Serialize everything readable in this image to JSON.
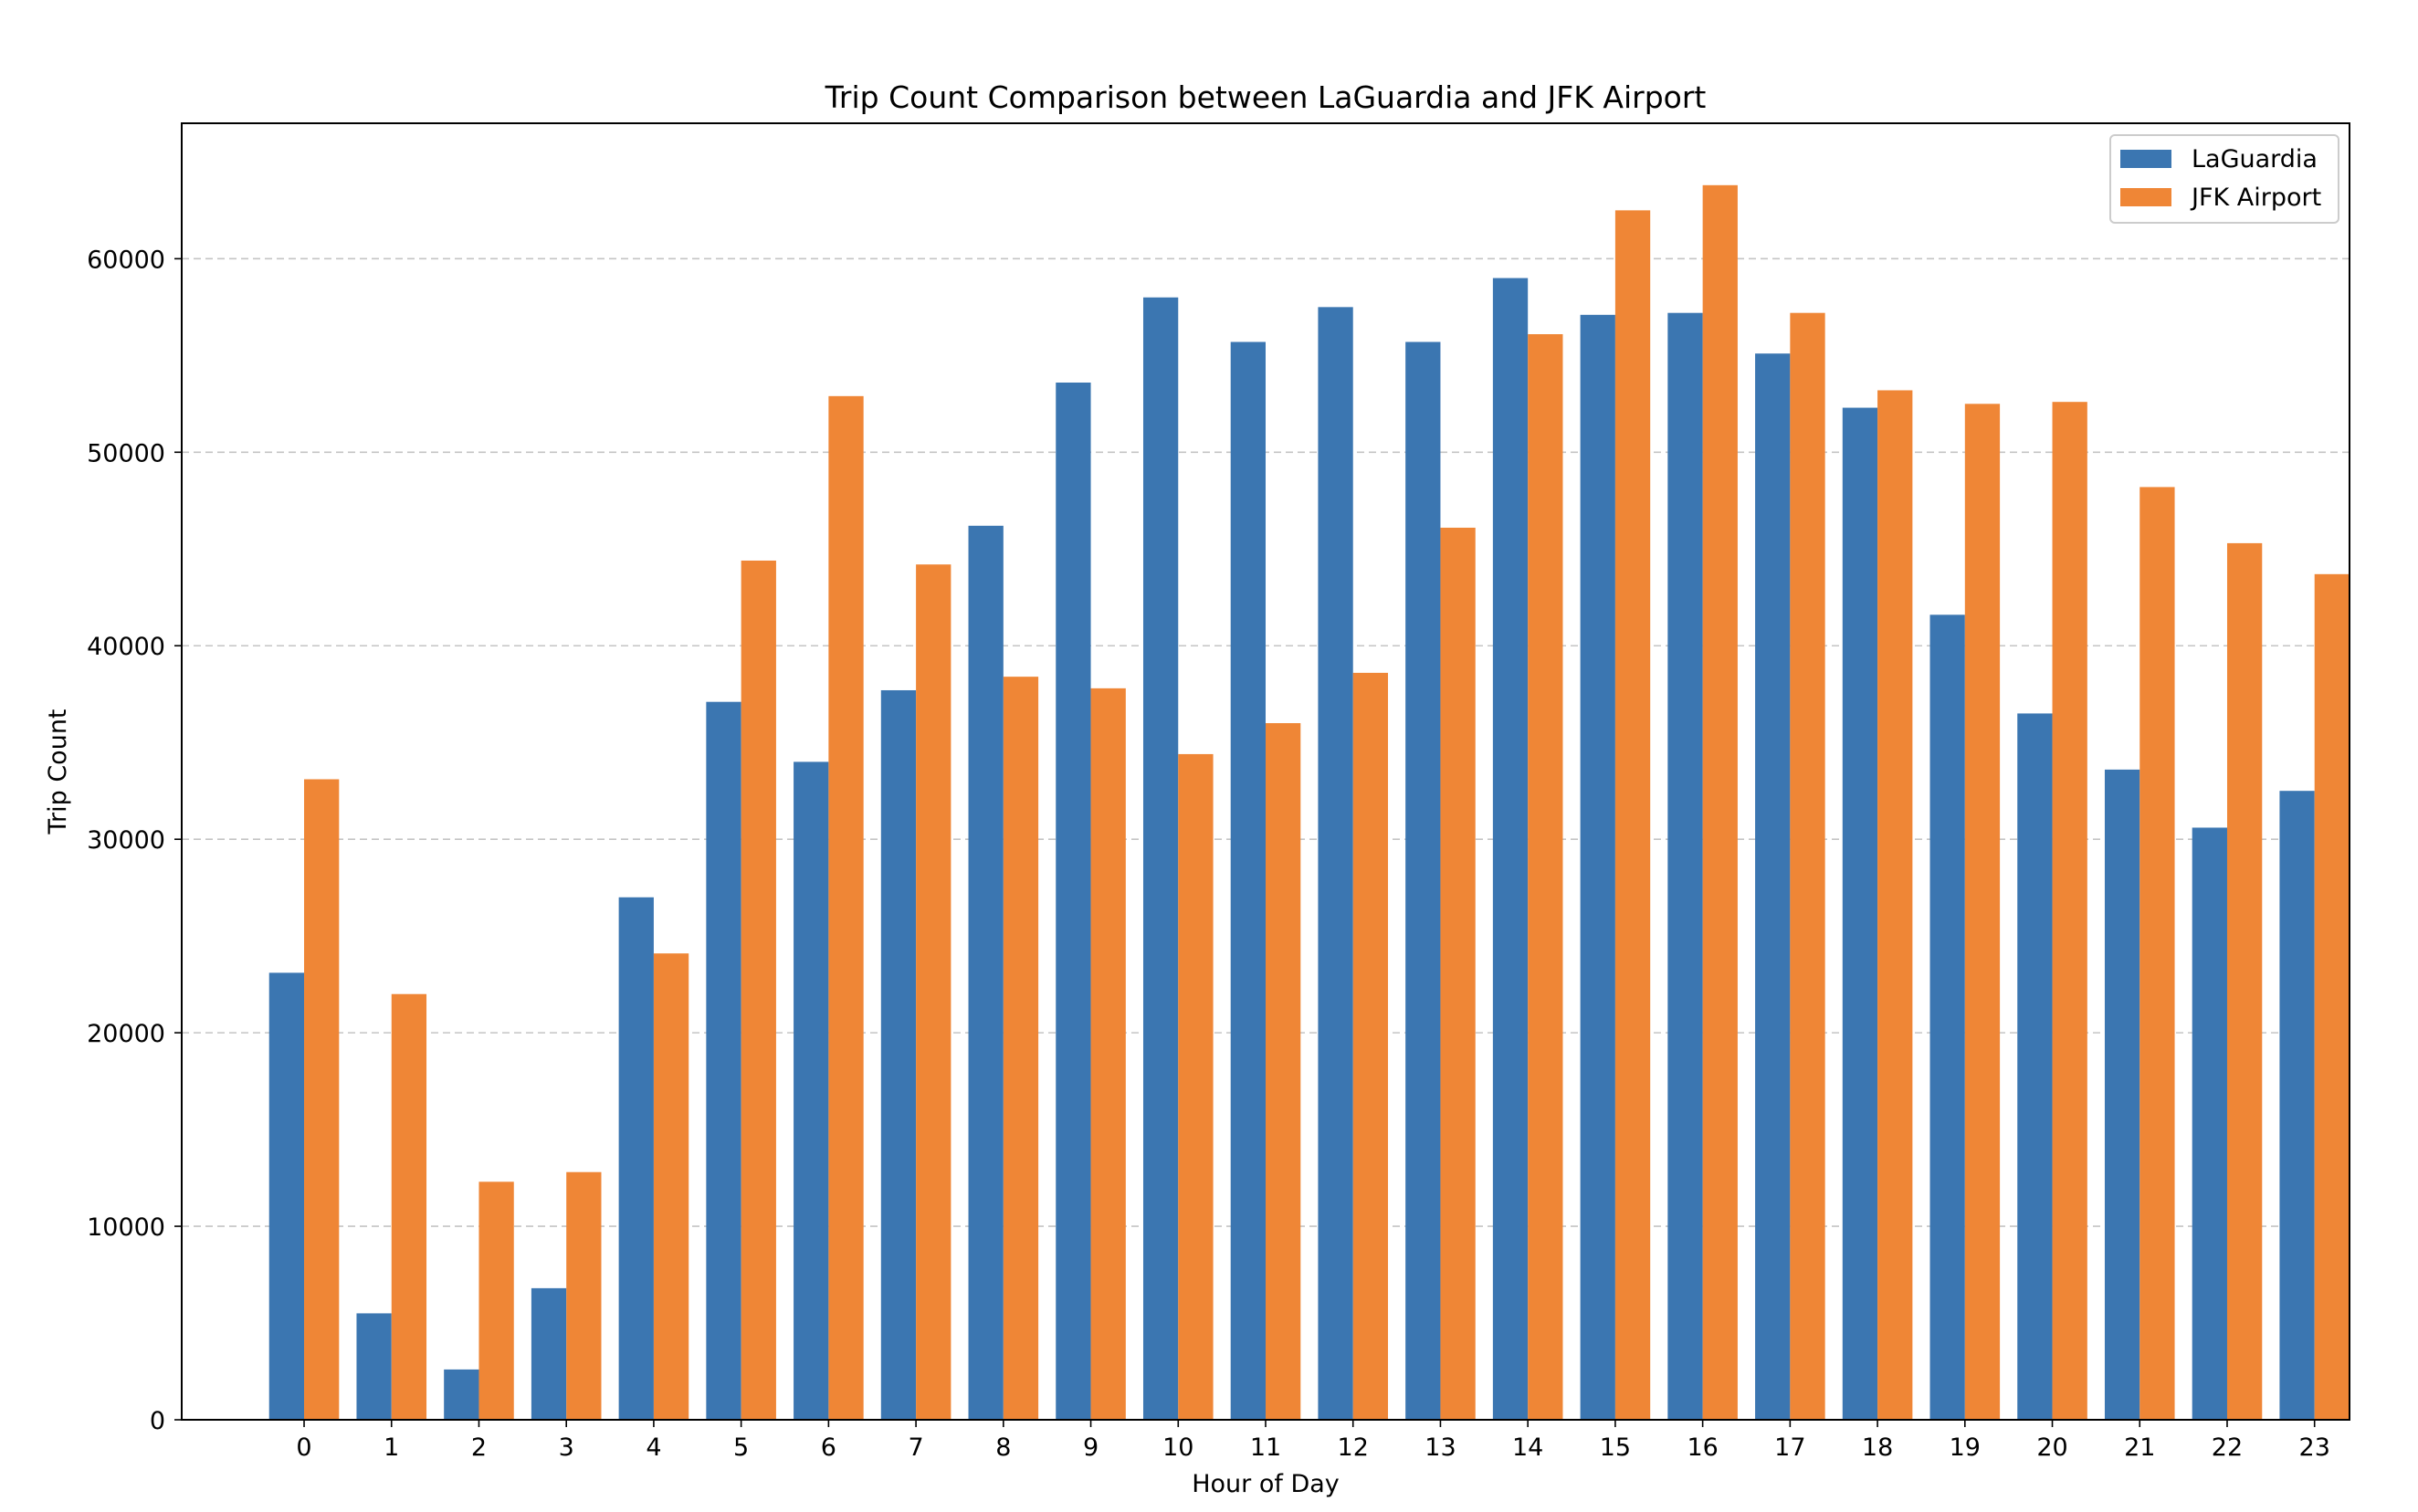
{
  "chart_data": {
    "type": "bar",
    "title": "Trip Count Comparison between LaGuardia and JFK Airport",
    "xlabel": "Hour of Day",
    "ylabel": "Trip Count",
    "categories": [
      "0",
      "1",
      "2",
      "3",
      "4",
      "5",
      "6",
      "7",
      "8",
      "9",
      "10",
      "11",
      "12",
      "13",
      "14",
      "15",
      "16",
      "17",
      "18",
      "19",
      "20",
      "21",
      "22",
      "23"
    ],
    "ylim": [
      0,
      67000
    ],
    "yticks": [
      0,
      10000,
      20000,
      30000,
      40000,
      50000,
      60000
    ],
    "grid": "y-dashed",
    "legend_position": "top-right",
    "series": [
      {
        "name": "LaGuardia",
        "color": "#3b76b1",
        "values": [
          23100,
          5500,
          2600,
          6800,
          27000,
          37100,
          34000,
          37700,
          46200,
          53600,
          58000,
          55700,
          57500,
          55700,
          59000,
          57100,
          57200,
          55100,
          52300,
          41600,
          36500,
          33600,
          30600,
          32500
        ]
      },
      {
        "name": "JFK Airport",
        "color": "#ef8636",
        "values": [
          33100,
          22000,
          12300,
          12800,
          24100,
          44400,
          52900,
          44200,
          38400,
          37800,
          34400,
          36000,
          38600,
          46100,
          56100,
          62500,
          63800,
          57200,
          53200,
          52500,
          52600,
          48200,
          45300,
          43700
        ]
      }
    ]
  }
}
